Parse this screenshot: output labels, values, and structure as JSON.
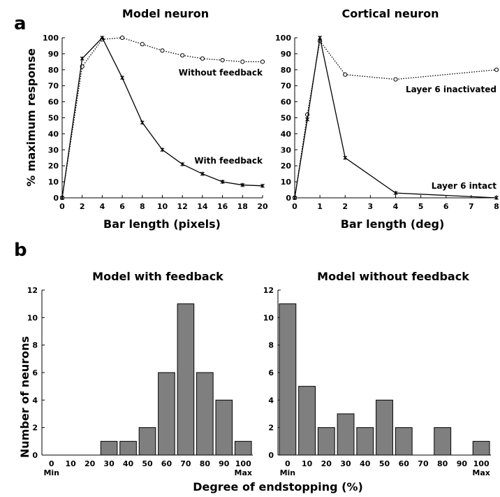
{
  "panel_labels": [
    "a",
    "b"
  ],
  "colors": {
    "bar_fill": "#7f7f7f",
    "bar_stroke": "#000000",
    "line": "#000000"
  },
  "chart_data": [
    {
      "type": "line",
      "panel": "a",
      "title": "Model neuron",
      "xlabel": "Bar length (pixels)",
      "ylabel": "% maximum response",
      "xlim": [
        0,
        20
      ],
      "ylim": [
        0,
        100
      ],
      "xticks": [
        0,
        2,
        4,
        6,
        8,
        10,
        12,
        14,
        16,
        18,
        20
      ],
      "yticks": [
        0,
        10,
        20,
        30,
        40,
        50,
        60,
        70,
        80,
        90,
        100
      ],
      "series": [
        {
          "name": "Without feedback",
          "style": "dotted",
          "marker": "circle",
          "x": [
            0,
            2,
            4,
            6,
            8,
            10,
            12,
            14,
            16,
            18,
            20
          ],
          "y": [
            0,
            82,
            99,
            100,
            96,
            92,
            89,
            87,
            86,
            85,
            85
          ]
        },
        {
          "name": "With feedback",
          "style": "solid",
          "marker": "star",
          "x": [
            0,
            2,
            4,
            6,
            8,
            10,
            12,
            14,
            16,
            18,
            20
          ],
          "y": [
            0,
            87,
            100,
            75,
            47,
            30,
            21,
            15,
            10,
            8,
            7.5
          ]
        }
      ]
    },
    {
      "type": "line",
      "panel": "a",
      "title": "Cortical neuron",
      "xlabel": "Bar length (deg)",
      "ylabel": "",
      "xlim": [
        0,
        8
      ],
      "ylim": [
        0,
        100
      ],
      "xticks": [
        0,
        1,
        2,
        3,
        4,
        5,
        6,
        7,
        8
      ],
      "yticks": [
        0,
        10,
        20,
        30,
        40,
        50,
        60,
        70,
        80,
        90,
        100
      ],
      "series": [
        {
          "name": "Layer 6 inactivated",
          "style": "dotted",
          "marker": "circle",
          "x": [
            0,
            0.5,
            1,
            2,
            4,
            8
          ],
          "y": [
            0,
            52,
            98,
            77,
            74,
            80
          ]
        },
        {
          "name": "Layer 6 intact",
          "style": "solid",
          "marker": "star",
          "x": [
            0,
            0.5,
            1,
            2,
            4,
            8
          ],
          "y": [
            0,
            49,
            100,
            25,
            3,
            0
          ]
        }
      ]
    },
    {
      "type": "bar",
      "panel": "b",
      "title": "Model with feedback",
      "xlabel": "Degree of endstopping (%)",
      "ylabel": "Number of neurons",
      "categories": [
        "0",
        "10",
        "20",
        "30",
        "40",
        "50",
        "60",
        "70",
        "80",
        "90",
        "100"
      ],
      "values": [
        0,
        0,
        0,
        1,
        1,
        2,
        6,
        11,
        6,
        4,
        1
      ],
      "ylim": [
        0,
        12
      ],
      "yticks": [
        0,
        2,
        4,
        6,
        8,
        10,
        12
      ],
      "sub_labels": {
        "first": "Min",
        "last": "Max"
      }
    },
    {
      "type": "bar",
      "panel": "b",
      "title": "Model without feedback",
      "xlabel": "Degree of endstopping (%)",
      "ylabel": "Number of neurons",
      "categories": [
        "0",
        "10",
        "20",
        "30",
        "40",
        "50",
        "60",
        "70",
        "80",
        "90",
        "100"
      ],
      "values": [
        11,
        5,
        2,
        3,
        2,
        4,
        2,
        0,
        2,
        0,
        1
      ],
      "ylim": [
        0,
        12
      ],
      "yticks": [
        0,
        2,
        4,
        6,
        8,
        10,
        12
      ],
      "sub_labels": {
        "first": "Min",
        "last": "Max"
      }
    }
  ]
}
